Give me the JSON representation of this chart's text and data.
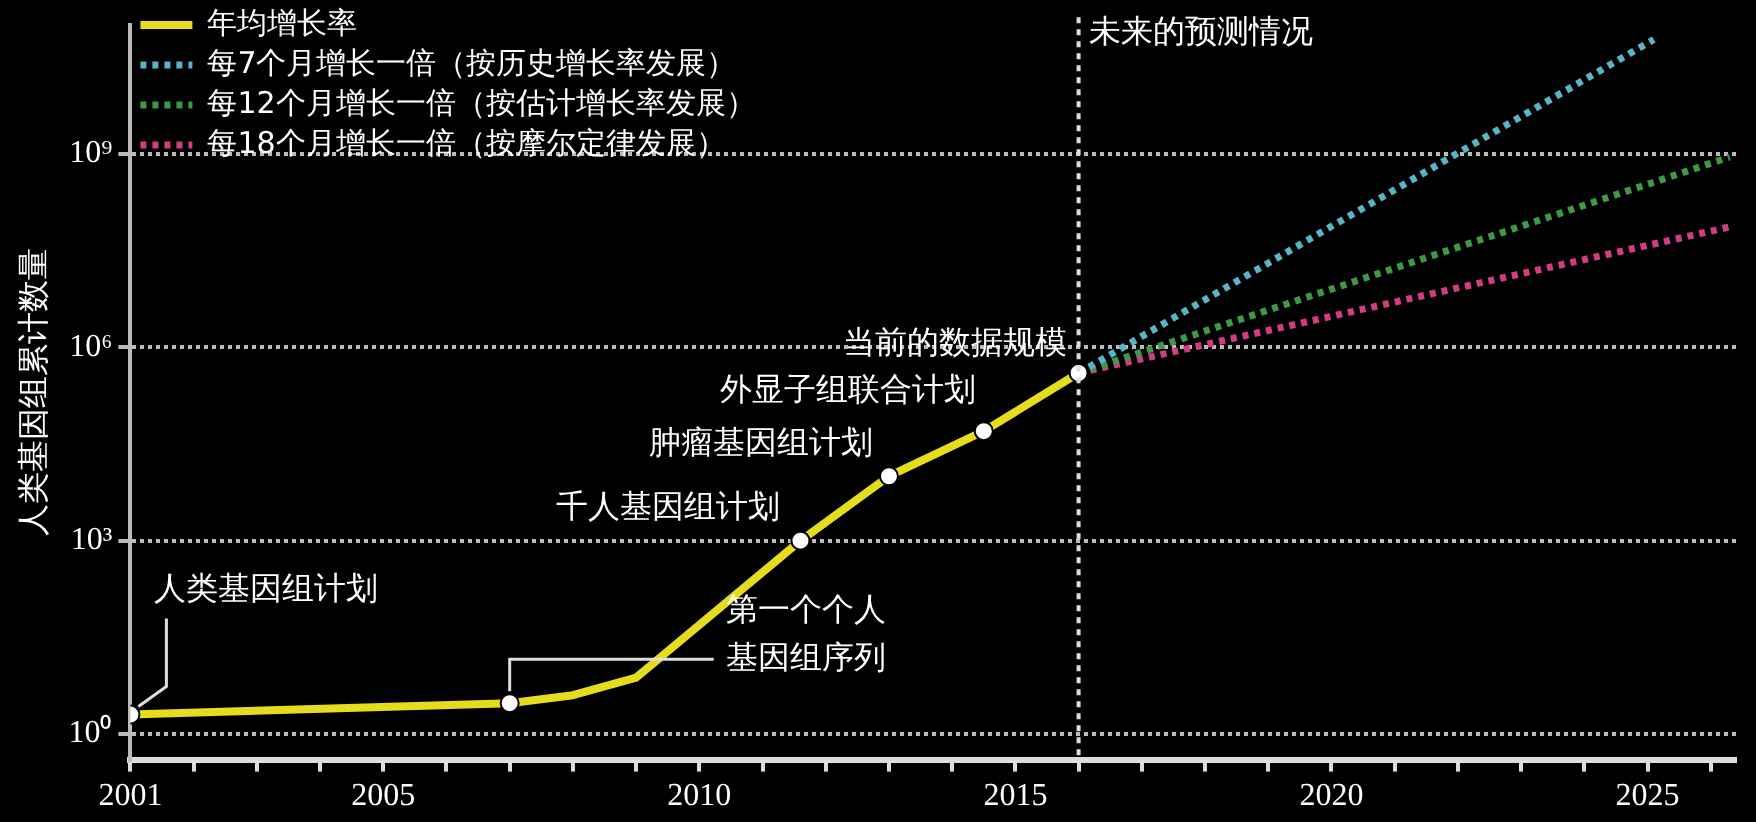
{
  "chart_data": {
    "type": "line",
    "ylabel": "人类基因组累计数量",
    "x": [
      2001,
      2007,
      2008,
      2009,
      2011.6,
      2013,
      2014.5,
      2016
    ],
    "series": [
      {
        "name": "年均增长率",
        "color": "#e6dc1e",
        "values": [
          2,
          3,
          4,
          7.5,
          1000,
          10000,
          50000,
          400000
        ]
      },
      {
        "name": "每7个月增长一倍（按历史增长率发展）",
        "color": "#5ab4c8",
        "line_style": "dotted",
        "x": [
          2016,
          2025.1
        ],
        "values": [
          400000,
          60000000000
        ]
      },
      {
        "name": "每12个月增长一倍（按估计增长率发展）",
        "color": "#3c9a46",
        "line_style": "dotted",
        "x": [
          2016,
          2026.3
        ],
        "values": [
          400000,
          900000000
        ]
      },
      {
        "name": "每18个月增长一倍（按摩尔定律发展）",
        "color": "#d23c82",
        "line_style": "dotted",
        "x": [
          2016,
          2026.3
        ],
        "values": [
          400000,
          74000000
        ]
      }
    ],
    "xlim": [
      2001,
      2026.4
    ],
    "xticks": [
      2001,
      {
        "value": 2002,
        "label": null
      },
      {
        "value": 2003,
        "label": null
      },
      {
        "value": 2004,
        "label": null
      },
      2005,
      {
        "value": 2006,
        "label": null
      },
      {
        "value": 2007,
        "label": null
      },
      {
        "value": 2008,
        "label": null
      },
      {
        "value": 2009,
        "label": null
      },
      2010,
      {
        "value": 2011,
        "label": null
      },
      {
        "value": 2012,
        "label": null
      },
      {
        "value": 2013,
        "label": null
      },
      {
        "value": 2014,
        "label": null
      },
      2015,
      {
        "value": 2016,
        "label": null
      },
      {
        "value": 2017,
        "label": null
      },
      {
        "value": 2018,
        "label": null
      },
      {
        "value": 2019,
        "label": null
      },
      2020,
      {
        "value": 2021,
        "label": null
      },
      {
        "value": 2022,
        "label": null
      },
      {
        "value": 2023,
        "label": null
      },
      {
        "value": 2024,
        "label": null
      },
      2025,
      {
        "value": 2026,
        "label": null
      }
    ],
    "ylim": [
      0.4,
      100000000000
    ],
    "yticks": [
      {
        "value": 1,
        "label": "10⁰"
      },
      {
        "value": 1000,
        "label": "10³"
      },
      {
        "value": 1000000,
        "label": "10⁶"
      },
      {
        "value": 1000000000,
        "label": "10⁹"
      }
    ],
    "log": "y",
    "grid": "y",
    "legend": "top left",
    "marker": "circle",
    "ref_lines": [
      {
        "axis": "x",
        "value": 2016,
        "label": "未来的预测情况"
      }
    ],
    "annotations": [
      {
        "text": "人类基因组计划",
        "x": 2001,
        "y": 2
      },
      {
        "text": "第一个个人基因组序列",
        "x": 2007,
        "y": 3
      },
      {
        "text": "千人基因组计划",
        "x": 2011.6,
        "y": 1000
      },
      {
        "text": "肿瘤基因组计划",
        "x": 2013,
        "y": 10000
      },
      {
        "text": "外显子组联合计划",
        "x": 2014.5,
        "y": 50000
      },
      {
        "text": "当前的数据规模",
        "x": 2016,
        "y": 400000
      }
    ]
  }
}
